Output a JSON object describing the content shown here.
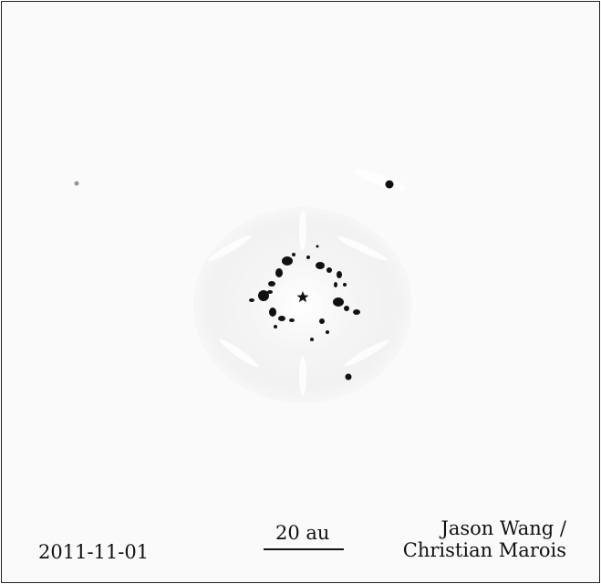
{
  "image": {
    "date_label": "2011-11-01",
    "scale_label": "20 au",
    "credit_line1": "Jason Wang /",
    "credit_line2": "Christian Marois",
    "colors": {
      "background": "#fafafa",
      "planet": "#111111",
      "speckle": "#111111",
      "frame": "#222222"
    }
  }
}
